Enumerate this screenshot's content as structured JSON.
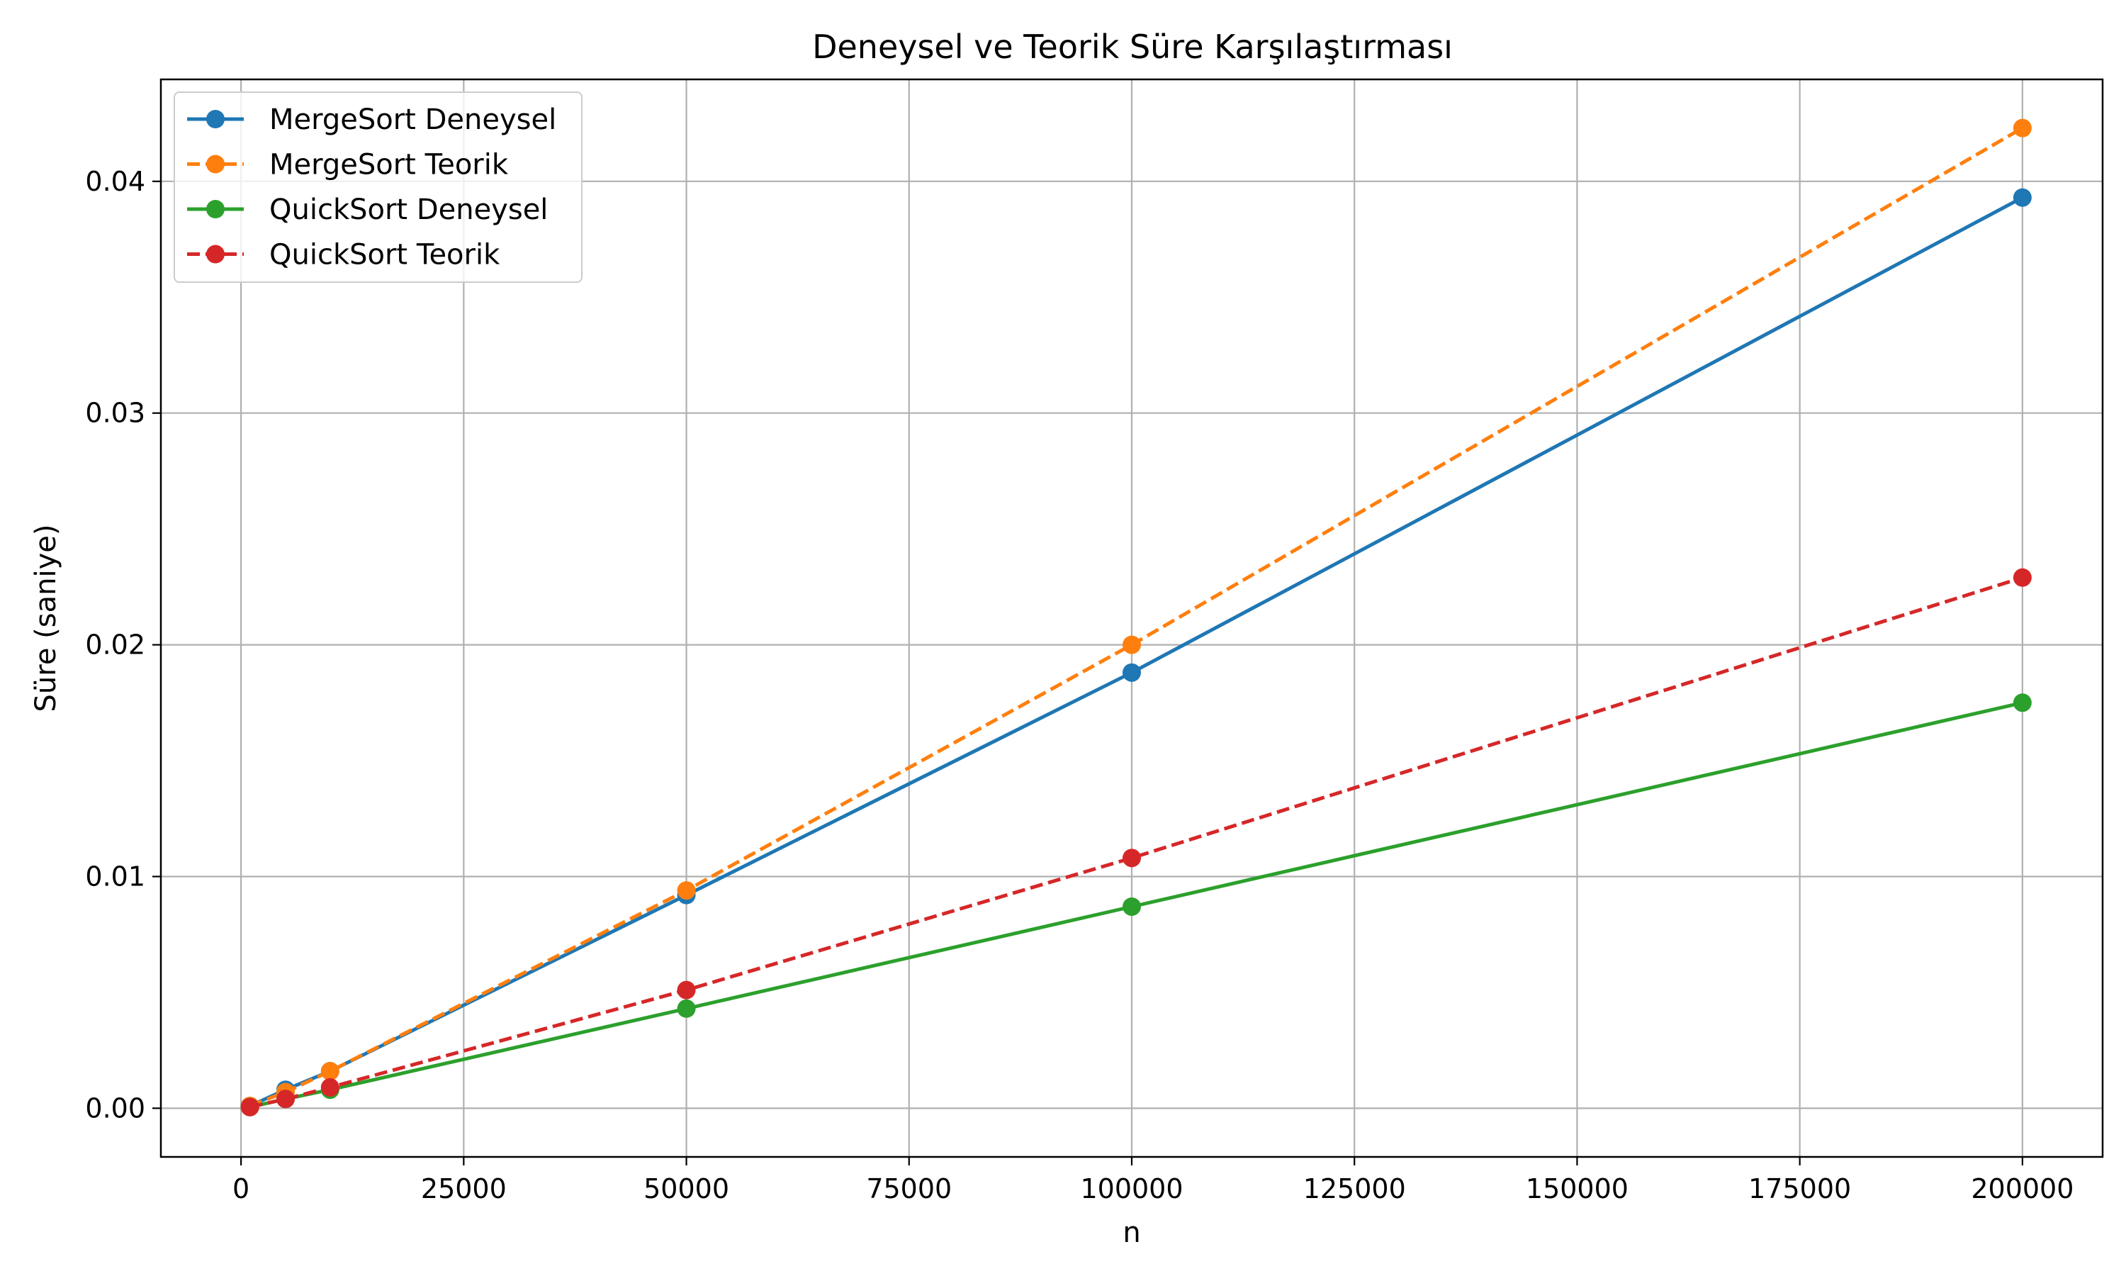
{
  "chart_data": {
    "type": "line",
    "title": "Deneysel ve Teorik Süre Karşılaştırması",
    "xlabel": "n",
    "ylabel": "Süre (saniye)",
    "xlim": [
      -9000,
      209000
    ],
    "ylim": [
      -0.0021,
      0.0444
    ],
    "xticks": [
      0,
      25000,
      50000,
      75000,
      100000,
      125000,
      150000,
      175000,
      200000
    ],
    "xtick_labels": [
      "0",
      "25000",
      "50000",
      "75000",
      "100000",
      "125000",
      "150000",
      "175000",
      "200000"
    ],
    "yticks": [
      0.0,
      0.01,
      0.02,
      0.03,
      0.04
    ],
    "ytick_labels": [
      "0.00",
      "0.01",
      "0.02",
      "0.03",
      "0.04"
    ],
    "grid": true,
    "legend_position": "top-left",
    "x": [
      1000,
      5000,
      10000,
      50000,
      100000,
      200000
    ],
    "series": [
      {
        "name": "MergeSort Deneysel",
        "color": "#1f77b4",
        "style": "solid",
        "values": [
          0.0001,
          0.0008,
          0.0016,
          0.0092,
          0.0188,
          0.0393
        ]
      },
      {
        "name": "MergeSort Teorik",
        "color": "#ff7f0e",
        "style": "dashed",
        "values": [
          0.0001,
          0.0007,
          0.0016,
          0.0094,
          0.02,
          0.0423
        ]
      },
      {
        "name": "QuickSort Deneysel",
        "color": "#2ca02c",
        "style": "solid",
        "values": [
          5e-05,
          0.0004,
          0.0008,
          0.0043,
          0.0087,
          0.0175
        ]
      },
      {
        "name": "QuickSort Teorik",
        "color": "#d62728",
        "style": "dashed",
        "values": [
          5e-05,
          0.0004,
          0.0009,
          0.0051,
          0.0108,
          0.0229
        ]
      }
    ]
  }
}
